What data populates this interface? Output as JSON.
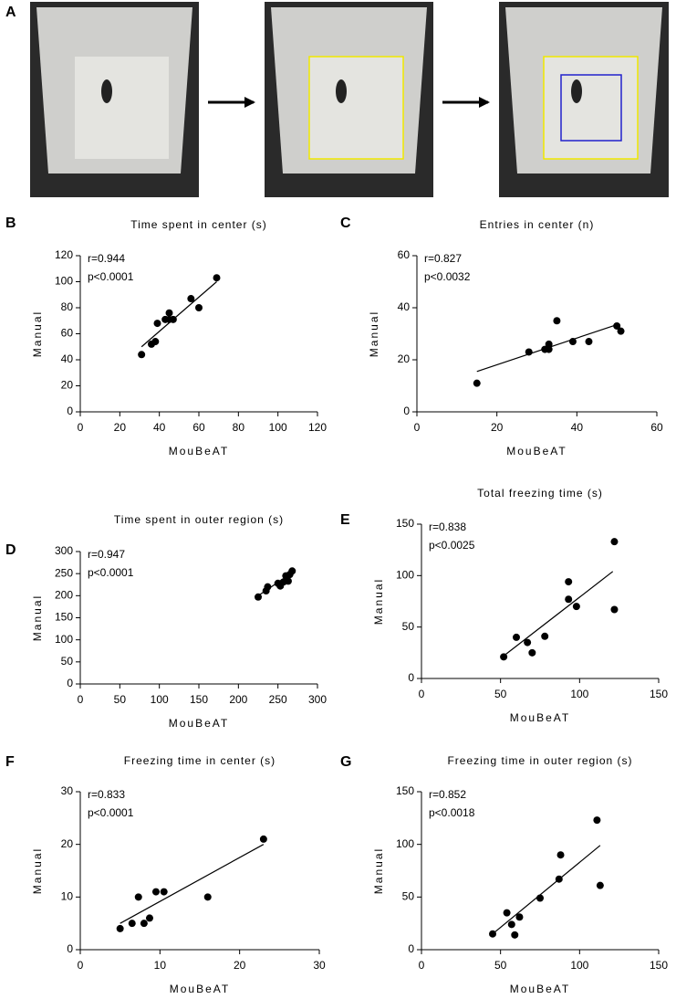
{
  "photo_panel": {
    "label": "A"
  },
  "chart_data": [
    {
      "type": "scatter",
      "panel": "B",
      "title": "Time spent in center (s)",
      "xlabel": "MouBeAT",
      "ylabel": "Manual",
      "annotations": [
        "r=0.944",
        "p<0.0001"
      ],
      "x": [
        31,
        36,
        38,
        39,
        43,
        45,
        45,
        47,
        56,
        60,
        69
      ],
      "y": [
        44,
        52,
        54,
        68,
        71,
        76,
        71,
        71,
        87,
        80,
        103
      ],
      "trendline": {
        "x": [
          31,
          69
        ],
        "y": [
          50,
          100
        ]
      },
      "color": "#000000",
      "xlim": [
        0,
        120
      ],
      "xticks": [
        0,
        20,
        40,
        60,
        80,
        100,
        120
      ],
      "ylim": [
        0,
        120
      ],
      "yticks": [
        0,
        20,
        40,
        60,
        80,
        100,
        120
      ]
    },
    {
      "type": "scatter",
      "panel": "C",
      "title": "Entries in center (n)",
      "xlabel": "MouBeAT",
      "ylabel": "Manual",
      "annotations": [
        "r=0.827",
        "p<0.0032"
      ],
      "x": [
        15,
        28,
        32,
        33,
        33,
        35,
        39,
        43,
        50,
        51
      ],
      "y": [
        11,
        23,
        24,
        24,
        26,
        35,
        27,
        27,
        33,
        31
      ],
      "trendline": {
        "x": [
          15,
          50
        ],
        "y": [
          15.5,
          33.5
        ]
      },
      "color": "#000000",
      "xlim": [
        0,
        60
      ],
      "xticks": [
        0,
        20,
        40,
        60
      ],
      "ylim": [
        0,
        60
      ],
      "yticks": [
        0,
        20,
        40,
        60
      ]
    },
    {
      "type": "scatter",
      "panel": "D",
      "title": "Time spent in outer region (s)",
      "xlabel": "MouBeAT",
      "ylabel": "Manual",
      "annotations": [
        "r=0.947",
        "p<0.0001"
      ],
      "x": [
        225,
        235,
        237,
        250,
        253,
        257,
        260,
        263,
        265,
        268
      ],
      "y": [
        197,
        211,
        220,
        228,
        222,
        231,
        245,
        233,
        248,
        256
      ],
      "trendline": {
        "x": [
          225,
          268
        ],
        "y": [
          200,
          252
        ]
      },
      "color": "#000000",
      "xlim": [
        0,
        300
      ],
      "xticks": [
        0,
        50,
        100,
        150,
        200,
        250,
        300
      ],
      "ylim": [
        0,
        300
      ],
      "yticks": [
        0,
        50,
        100,
        150,
        200,
        250,
        300
      ]
    },
    {
      "type": "scatter",
      "panel": "E",
      "title": "Total freezing time (s)",
      "xlabel": "MouBeAT",
      "ylabel": "Manual",
      "annotations": [
        "r=0.838",
        "p<0.0025"
      ],
      "x": [
        52,
        60,
        67,
        70,
        78,
        93,
        93,
        98,
        122,
        122
      ],
      "y": [
        21,
        40,
        35,
        25,
        41,
        94,
        77,
        70,
        133,
        67
      ],
      "trendline": {
        "x": [
          52,
          121
        ],
        "y": [
          22,
          104
        ]
      },
      "color": "#000000",
      "xlim": [
        0,
        150
      ],
      "xticks": [
        0,
        50,
        100,
        150
      ],
      "ylim": [
        0,
        150
      ],
      "yticks": [
        0,
        50,
        100,
        150
      ]
    },
    {
      "type": "scatter",
      "panel": "F",
      "title": "Freezing time in center (s)",
      "xlabel": "MouBeAT",
      "ylabel": "Manual",
      "annotations": [
        "r=0.833",
        "p<0.0001"
      ],
      "x": [
        5,
        6.5,
        7.3,
        8,
        8.7,
        9.5,
        10.5,
        16,
        23
      ],
      "y": [
        4,
        5,
        10,
        5,
        6,
        11,
        11,
        10,
        21
      ],
      "trendline": {
        "x": [
          5,
          23
        ],
        "y": [
          5,
          20
        ]
      },
      "color": "#000000",
      "xlim": [
        0,
        30
      ],
      "xticks": [
        0,
        10,
        20,
        30
      ],
      "ylim": [
        0,
        30
      ],
      "yticks": [
        0,
        10,
        20,
        30
      ]
    },
    {
      "type": "scatter",
      "panel": "G",
      "title": "Freezing time in outer region (s)",
      "xlabel": "MouBeAT",
      "ylabel": "Manual",
      "annotations": [
        "r=0.852",
        "p<0.0018"
      ],
      "x": [
        45,
        54,
        57,
        59,
        62,
        75,
        87,
        88,
        111,
        113
      ],
      "y": [
        15,
        35,
        24,
        14,
        31,
        49,
        67,
        90,
        123,
        61
      ],
      "trendline": {
        "x": [
          45,
          113
        ],
        "y": [
          15,
          99
        ]
      },
      "color": "#000000",
      "xlim": [
        0,
        150
      ],
      "xticks": [
        0,
        50,
        100,
        150
      ],
      "ylim": [
        0,
        150
      ],
      "yticks": [
        0,
        50,
        100,
        150
      ]
    }
  ]
}
